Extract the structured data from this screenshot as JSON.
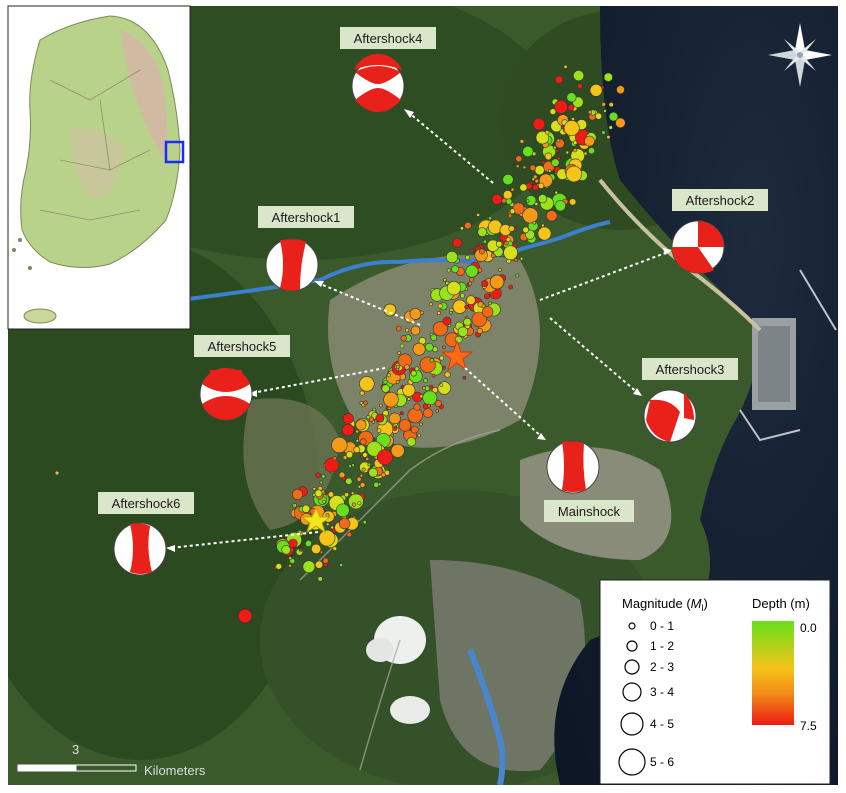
{
  "labels": {
    "aftershock1": "Aftershock1",
    "aftershock2": "Aftershock2",
    "aftershock3": "Aftershock3",
    "aftershock4": "Aftershock4",
    "aftershock5": "Aftershock5",
    "aftershock6": "Aftershock6",
    "mainshock": "Mainshock"
  },
  "legend": {
    "magnitude_title": "Magnitude (",
    "magnitude_symbol": "M",
    "magnitude_sub": "l",
    "magnitude_close": ")",
    "depth_title": "Depth (m)",
    "depth_min": "0.0",
    "depth_max": "7.5",
    "magnitude_classes": [
      "0 - 1",
      "1 - 2",
      "2 - 3",
      "3 - 4",
      "4 - 5",
      "5 - 6"
    ]
  },
  "scale": {
    "tick_label": "3",
    "unit": "Kilometers"
  },
  "colors": {
    "depth_shallow": "#66e01c",
    "depth_mid": "#f5c418",
    "depth_deep": "#ee1c14",
    "mainshock_star": "#ff6a1a",
    "aftershock_star": "#f6e51a",
    "inset_box": "#1a2bff",
    "beachball": "#e8221a"
  },
  "icons": {
    "compass": "compass-rose-icon"
  }
}
